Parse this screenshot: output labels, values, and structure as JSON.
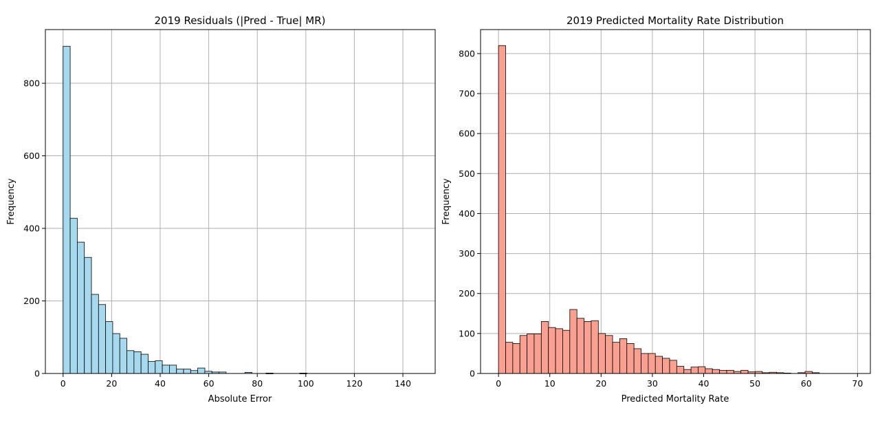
{
  "chart_data": [
    {
      "type": "bar",
      "title": "2019 Residuals (|Pred - True| MR)",
      "xlabel": "Absolute Error",
      "ylabel": "Frequency",
      "color": "#a6d8ee",
      "grid": true,
      "xlim": [
        -7.3,
        153.3
      ],
      "ylim": [
        0,
        948
      ],
      "xticks": [
        0,
        20,
        40,
        60,
        80,
        100,
        120,
        140
      ],
      "yticks": [
        0,
        200,
        400,
        600,
        800
      ],
      "bin_start": 0,
      "bin_width": 2.92,
      "values": [
        902,
        428,
        362,
        320,
        218,
        190,
        143,
        110,
        97,
        63,
        60,
        53,
        33,
        35,
        23,
        23,
        12,
        12,
        8,
        15,
        6,
        4,
        4,
        0,
        0,
        0,
        0,
        0,
        0,
        0,
        0,
        0,
        0,
        0,
        0,
        0,
        0,
        0,
        0,
        0,
        0,
        0,
        0,
        0,
        0,
        0,
        0,
        0,
        0,
        0
      ],
      "sparse_bars": [
        {
          "x": 74.9,
          "value": 3
        },
        {
          "x": 83.6,
          "value": 1
        },
        {
          "x": 97.5,
          "value": 1
        }
      ]
    },
    {
      "type": "bar",
      "title": "2019 Predicted Mortality Rate Distribution",
      "xlabel": "Predicted Mortality Rate",
      "ylabel": "Frequency",
      "color": "#f9a090",
      "grid": true,
      "xlim": [
        -3.5,
        72.5
      ],
      "ylim": [
        0,
        860
      ],
      "xticks": [
        0,
        10,
        20,
        30,
        40,
        50,
        60,
        70
      ],
      "yticks": [
        0,
        100,
        200,
        300,
        400,
        500,
        600,
        700,
        800
      ],
      "bin_start": 0,
      "bin_width": 1.39,
      "values": [
        820,
        78,
        75,
        95,
        99,
        99,
        130,
        115,
        112,
        108,
        160,
        138,
        130,
        132,
        100,
        95,
        78,
        87,
        75,
        62,
        50,
        50,
        43,
        38,
        33,
        18,
        10,
        16,
        17,
        12,
        10,
        8,
        8,
        5,
        8,
        4,
        5,
        2,
        3,
        2,
        1,
        0,
        2,
        5,
        2,
        0,
        0,
        0,
        0,
        0,
        0
      ]
    }
  ]
}
